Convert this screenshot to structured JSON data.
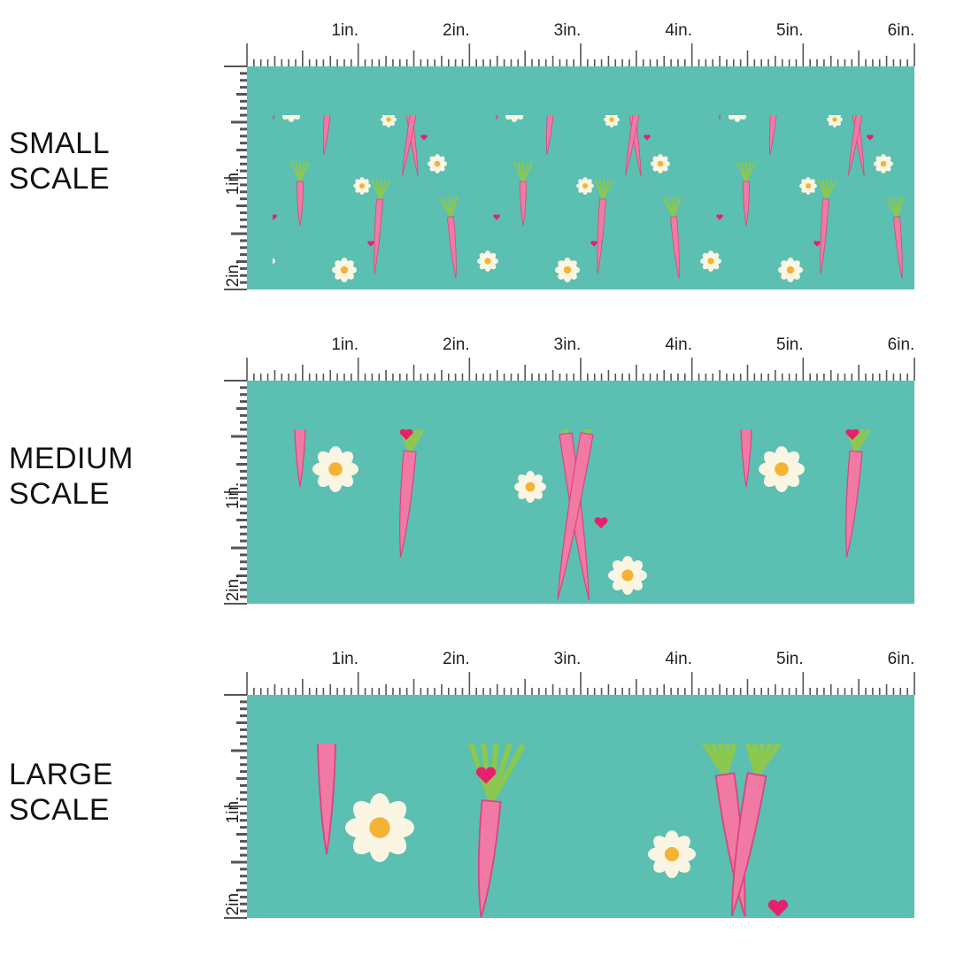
{
  "colors": {
    "background": "#5bbfb1",
    "carrot": "#f07aa3",
    "carrot_edge": "#d9457f",
    "leaf": "#8cc850",
    "leaf_dark": "#2f7d3a",
    "daisy": "#fbf6e4",
    "daisy_center": "#f5b335",
    "heart": "#e8206c",
    "ruler": "#555555"
  },
  "panels": [
    {
      "label_line1": "SMALL",
      "label_line2": "SCALE",
      "zoom": 1,
      "ruler_x": [
        "1in.",
        "2in.",
        "3in.",
        "4in.",
        "5in.",
        "6in."
      ],
      "ruler_y": [
        "1in.",
        "2in."
      ]
    },
    {
      "label_line1": "MEDIUM",
      "label_line2": "SCALE",
      "zoom": 2,
      "ruler_x": [
        "1in.",
        "2in.",
        "3in.",
        "4in.",
        "5in.",
        "6in."
      ],
      "ruler_y": [
        "1in.",
        "2in."
      ]
    },
    {
      "label_line1": "LARGE",
      "label_line2": "SCALE",
      "zoom": 3,
      "ruler_x": [
        "1in.",
        "2in.",
        "3in.",
        "4in.",
        "5in.",
        "6in."
      ],
      "ruler_y": [
        "1in.",
        "2in."
      ]
    }
  ]
}
